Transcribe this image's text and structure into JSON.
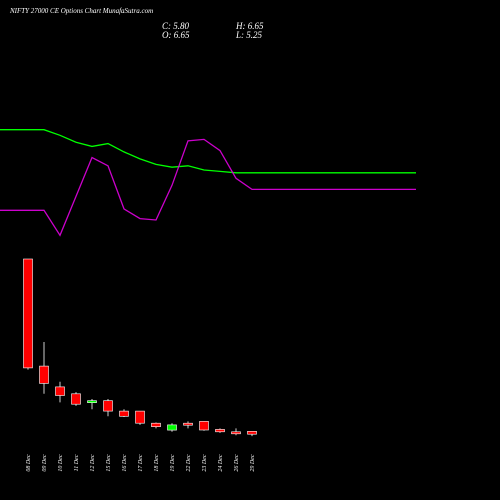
{
  "header": {
    "title": "NIFTY 27000  CE Options  Chart MunafaSutra.com",
    "close": "C: 5.80",
    "high": "H: 6.65",
    "open": "O: 6.65",
    "low": "L: 5.25"
  },
  "colors": {
    "background": "#000000",
    "bullish": "#00ff00",
    "bearish": "#ff0000",
    "ma_short": "#00ff00",
    "ma_long": "#cc00cc",
    "text": "#ffffff"
  },
  "chart_data": [
    {
      "type": "line",
      "x": [
        "08 Dec",
        "09 Dec",
        "10 Dec",
        "11 Dec",
        "12 Dec",
        "15 Dec",
        "16 Dec",
        "17 Dec",
        "18 Dec",
        "19 Dec",
        "22 Dec",
        "23 Dec",
        "24 Dec",
        "26 Dec",
        "29 Dec"
      ],
      "series": [
        {
          "values": [
            19.8,
            19.8,
            19.4,
            18.9,
            18.6,
            18.8,
            18.2,
            17.7,
            17.3,
            17.1,
            17.2,
            16.9,
            16.8,
            16.7,
            16.7
          ]
        },
        {
          "values": [
            14.0,
            14.0,
            12.2,
            15.0,
            17.8,
            17.2,
            14.1,
            13.4,
            13.3,
            15.8,
            19.0,
            19.1,
            18.3,
            16.3,
            15.5
          ]
        }
      ]
    },
    {
      "type": "candlestick",
      "x": [
        "08 Dec",
        "09 Dec",
        "10 Dec",
        "11 Dec",
        "12 Dec",
        "15 Dec",
        "16 Dec",
        "17 Dec",
        "18 Dec",
        "19 Dec",
        "22 Dec",
        "23 Dec",
        "24 Dec",
        "26 Dec",
        "29 Dec"
      ],
      "ohlc": [
        {
          "date": "08 Dec",
          "open": 56.5,
          "high": 56.5,
          "low": 24.5,
          "close": 25.0
        },
        {
          "date": "09 Dec",
          "open": 25.5,
          "high": 32.5,
          "low": 17.5,
          "close": 20.5
        },
        {
          "date": "10 Dec",
          "open": 19.5,
          "high": 21.0,
          "low": 15.0,
          "close": 17.0
        },
        {
          "date": "11 Dec",
          "open": 17.5,
          "high": 18.0,
          "low": 14.0,
          "close": 14.5
        },
        {
          "date": "12 Dec",
          "open": 15.0,
          "high": 16.0,
          "low": 13.0,
          "close": 15.5
        },
        {
          "date": "15 Dec",
          "open": 15.5,
          "high": 16.0,
          "low": 11.0,
          "close": 12.5
        },
        {
          "date": "16 Dec",
          "open": 12.5,
          "high": 13.0,
          "low": 10.8,
          "close": 11.0
        },
        {
          "date": "17 Dec",
          "open": 12.5,
          "high": 12.5,
          "low": 8.5,
          "close": 9.0
        },
        {
          "date": "18 Dec",
          "open": 9.0,
          "high": 9.2,
          "low": 7.5,
          "close": 8.0
        },
        {
          "date": "19 Dec",
          "open": 7.0,
          "high": 9.0,
          "low": 6.5,
          "close": 8.5
        },
        {
          "date": "22 Dec",
          "open": 9.0,
          "high": 9.5,
          "low": 7.5,
          "close": 8.5
        },
        {
          "date": "23 Dec",
          "open": 9.5,
          "high": 9.5,
          "low": 6.8,
          "close": 7.0
        },
        {
          "date": "24 Dec",
          "open": 7.2,
          "high": 7.5,
          "low": 6.2,
          "close": 6.5
        },
        {
          "date": "26 Dec",
          "open": 6.5,
          "high": 7.5,
          "low": 5.5,
          "close": 6.0
        },
        {
          "date": "29 Dec",
          "open": 6.65,
          "high": 6.65,
          "low": 5.25,
          "close": 5.8
        }
      ]
    }
  ]
}
